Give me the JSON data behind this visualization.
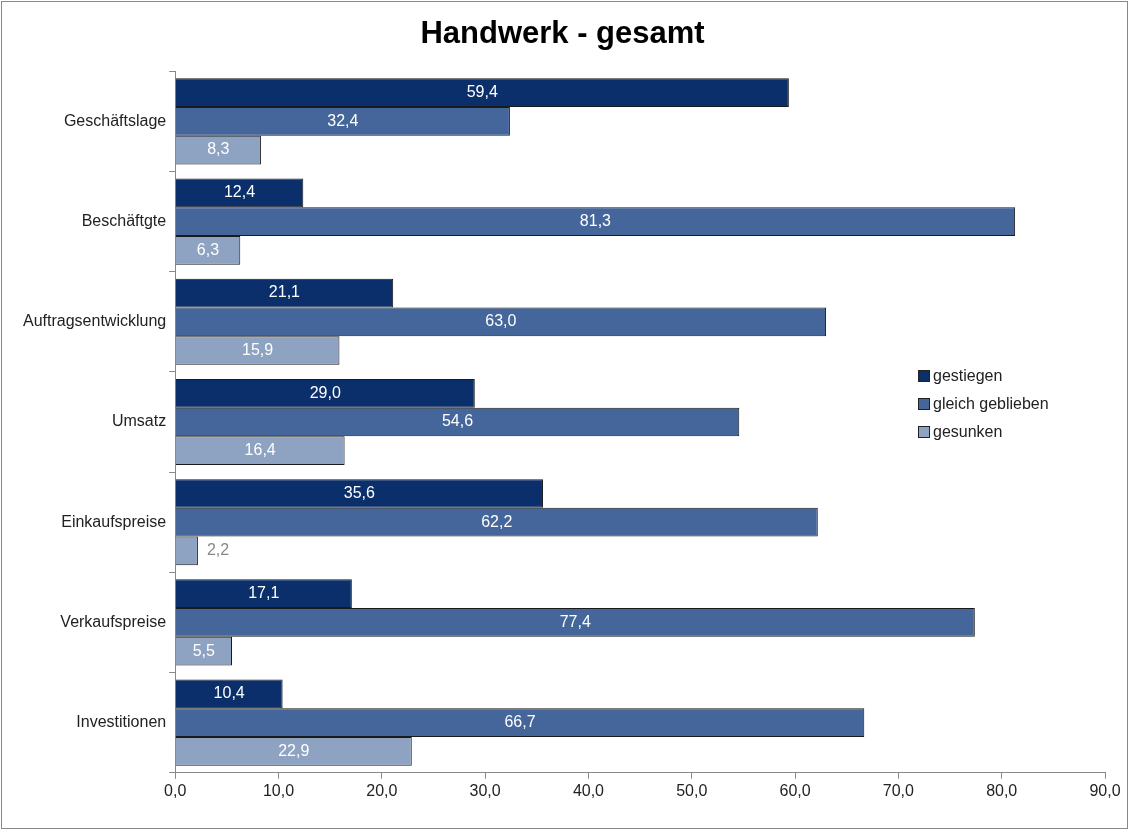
{
  "chart_data": {
    "type": "bar",
    "orientation": "horizontal",
    "title": "Handwerk - gesamt",
    "categories": [
      "Geschäftslage",
      "Beschäftgte",
      "Auftragsentwicklung",
      "Umsatz",
      "Einkaufspreise",
      "Verkaufspreise",
      "Investitionen"
    ],
    "series": [
      {
        "name": "gestiegen",
        "color": "#0b2f6b",
        "values": [
          59.4,
          12.4,
          21.1,
          29.0,
          35.6,
          17.1,
          10.4
        ],
        "value_labels": [
          "59,4",
          "12,4",
          "21,1",
          "29,0",
          "35,6",
          "17,1",
          "10,4"
        ]
      },
      {
        "name": "gleich geblieben",
        "color": "#45669a",
        "values": [
          32.4,
          81.3,
          63.0,
          54.6,
          62.2,
          77.4,
          66.7
        ],
        "value_labels": [
          "32,4",
          "81,3",
          "63,0",
          "54,6",
          "62,2",
          "77,4",
          "66,7"
        ]
      },
      {
        "name": "gesunken",
        "color": "#8ea2c2",
        "values": [
          8.3,
          6.3,
          15.9,
          16.4,
          2.2,
          5.5,
          22.9
        ],
        "value_labels": [
          "8,3",
          "6,3",
          "15,9",
          "16,4",
          "2,2",
          "5,5",
          "22,9"
        ]
      }
    ],
    "xlim": [
      0,
      90
    ],
    "xticks": [
      {
        "value": 0,
        "label": "0,0"
      },
      {
        "value": 10,
        "label": "10,0"
      },
      {
        "value": 20,
        "label": "20,0"
      },
      {
        "value": 30,
        "label": "30,0"
      },
      {
        "value": 40,
        "label": "40,0"
      },
      {
        "value": 50,
        "label": "50,0"
      },
      {
        "value": 60,
        "label": "60,0"
      },
      {
        "value": 70,
        "label": "70,0"
      },
      {
        "value": 80,
        "label": "80,0"
      },
      {
        "value": 90,
        "label": "90,0"
      }
    ],
    "grid": false,
    "legend": "right"
  }
}
